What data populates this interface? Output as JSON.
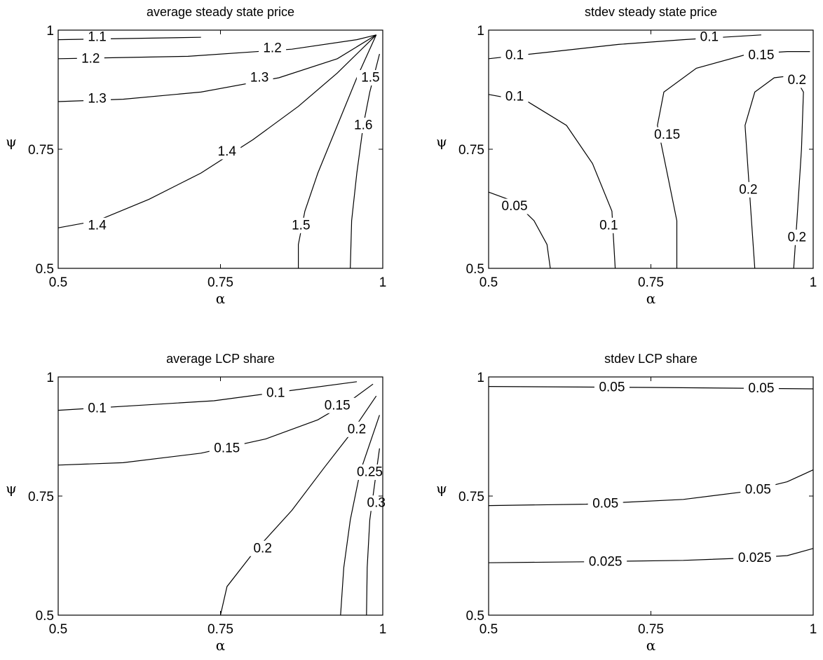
{
  "chart_data": [
    {
      "type": "contour",
      "title": "average steady state price",
      "xlabel": "α",
      "ylabel": "ψ",
      "xlim": [
        0.5,
        1
      ],
      "ylim": [
        0.5,
        1
      ],
      "xticks": [
        "0.5",
        "0.75",
        "1"
      ],
      "yticks": [
        "0.5",
        "0.75",
        "1"
      ],
      "contours": [
        {
          "level": "1.1",
          "points": [
            [
              0.5,
              0.98
            ],
            [
              0.72,
              0.985
            ]
          ],
          "label_at": [
            0.56,
            0.985
          ]
        },
        {
          "level": "1.2",
          "points": [
            [
              0.5,
              0.94
            ],
            [
              0.7,
              0.945
            ],
            [
              0.86,
              0.96
            ],
            [
              0.96,
              0.98
            ],
            [
              0.99,
              0.99
            ]
          ],
          "label_at": [
            0.55,
            0.94
          ]
        },
        {
          "level": "1.2",
          "points": [
            [
              0.5,
              0.94
            ],
            [
              0.99,
              0.99
            ]
          ],
          "label_at": [
            0.83,
            0.962
          ],
          "label_only": true
        },
        {
          "level": "1.3",
          "points": [
            [
              0.5,
              0.85
            ],
            [
              0.6,
              0.855
            ],
            [
              0.72,
              0.87
            ],
            [
              0.84,
              0.9
            ],
            [
              0.93,
              0.94
            ],
            [
              0.99,
              0.99
            ]
          ],
          "label_at": [
            0.56,
            0.856
          ]
        },
        {
          "level": "1.3",
          "points": [
            [
              0.5,
              0.85
            ],
            [
              0.99,
              0.99
            ]
          ],
          "label_at": [
            0.81,
            0.9
          ],
          "label_only": true
        },
        {
          "level": "1.4",
          "points": [
            [
              0.5,
              0.585
            ],
            [
              0.56,
              0.6
            ],
            [
              0.64,
              0.645
            ],
            [
              0.72,
              0.7
            ],
            [
              0.8,
              0.77
            ],
            [
              0.87,
              0.84
            ],
            [
              0.93,
              0.91
            ],
            [
              0.99,
              0.99
            ]
          ],
          "label_at": [
            0.76,
            0.745
          ]
        },
        {
          "level": "1.4",
          "points": [
            [
              0.5,
              0.585
            ],
            [
              0.99,
              0.99
            ]
          ],
          "label_at": [
            0.56,
            0.59
          ],
          "label_only": true
        },
        {
          "level": "1.5",
          "points": [
            [
              0.87,
              0.5
            ],
            [
              0.87,
              0.55
            ],
            [
              0.88,
              0.62
            ],
            [
              0.9,
              0.7
            ],
            [
              0.93,
              0.8
            ],
            [
              0.96,
              0.9
            ],
            [
              0.99,
              0.99
            ]
          ],
          "label_at": [
            0.874,
            0.59
          ]
        },
        {
          "level": "1.5",
          "points": [
            [
              0.87,
              0.5
            ],
            [
              0.99,
              0.99
            ]
          ],
          "label_at": [
            0.981,
            0.9
          ],
          "label_only": true
        },
        {
          "level": "1.6",
          "points": [
            [
              0.95,
              0.5
            ],
            [
              0.952,
              0.6
            ],
            [
              0.96,
              0.7
            ],
            [
              0.97,
              0.8
            ],
            [
              0.98,
              0.87
            ],
            [
              0.995,
              0.95
            ]
          ],
          "label_at": [
            0.97,
            0.8
          ]
        }
      ]
    },
    {
      "type": "contour",
      "title": "stdev steady state price",
      "xlabel": "α",
      "ylabel": "ψ",
      "xlim": [
        0.5,
        1
      ],
      "ylim": [
        0.5,
        1
      ],
      "xticks": [
        "0.5",
        "0.75",
        "1"
      ],
      "yticks": [
        "0.5",
        "0.75",
        "1"
      ],
      "contours": [
        {
          "level": "0.1",
          "points": [
            [
              0.5,
              0.94
            ],
            [
              0.6,
              0.955
            ],
            [
              0.7,
              0.97
            ],
            [
              0.8,
              0.98
            ],
            [
              0.92,
              0.99
            ]
          ],
          "label_at": [
            0.54,
            0.947
          ]
        },
        {
          "level": "0.1",
          "points": [
            [
              0.5,
              0.94
            ],
            [
              0.92,
              0.99
            ]
          ],
          "label_at": [
            0.84,
            0.985
          ],
          "label_only": true
        },
        {
          "level": "0.15",
          "points": [
            [
              0.79,
              0.5
            ],
            [
              0.79,
              0.6
            ],
            [
              0.775,
              0.7
            ],
            [
              0.76,
              0.8
            ],
            [
              0.77,
              0.87
            ],
            [
              0.82,
              0.92
            ],
            [
              0.9,
              0.95
            ],
            [
              0.96,
              0.955
            ],
            [
              0.995,
              0.955
            ]
          ],
          "label_at": [
            0.92,
            0.947
          ]
        },
        {
          "level": "0.15",
          "points": [
            [
              0.79,
              0.5
            ],
            [
              0.995,
              0.955
            ]
          ],
          "label_at": [
            0.775,
            0.78
          ],
          "label_only": true
        },
        {
          "level": "0.1",
          "points": [
            [
              0.5,
              0.865
            ],
            [
              0.56,
              0.85
            ],
            [
              0.62,
              0.8
            ],
            [
              0.66,
              0.72
            ],
            [
              0.69,
              0.62
            ],
            [
              0.695,
              0.5
            ]
          ],
          "label_at": [
            0.54,
            0.86
          ]
        },
        {
          "level": "0.1",
          "points": [
            [
              0.5,
              0.865
            ],
            [
              0.695,
              0.5
            ]
          ],
          "label_at": [
            0.685,
            0.59
          ],
          "label_only": true
        },
        {
          "level": "0.05",
          "points": [
            [
              0.5,
              0.66
            ],
            [
              0.54,
              0.64
            ],
            [
              0.57,
              0.6
            ],
            [
              0.59,
              0.55
            ],
            [
              0.595,
              0.5
            ]
          ],
          "label_at": [
            0.54,
            0.63
          ]
        },
        {
          "level": "0.2",
          "points": [
            [
              0.91,
              0.5
            ],
            [
              0.905,
              0.6
            ],
            [
              0.9,
              0.7
            ],
            [
              0.895,
              0.8
            ],
            [
              0.91,
              0.87
            ],
            [
              0.94,
              0.9
            ],
            [
              0.97,
              0.905
            ],
            [
              0.985,
              0.87
            ],
            [
              0.982,
              0.75
            ],
            [
              0.975,
              0.6
            ],
            [
              0.97,
              0.5
            ]
          ],
          "label_at": [
            0.9,
            0.665
          ]
        },
        {
          "level": "0.2",
          "points": [
            [
              0.91,
              0.5
            ],
            [
              0.97,
              0.5
            ]
          ],
          "label_at": [
            0.975,
            0.895
          ],
          "label_only": true
        },
        {
          "level": "0.2",
          "points": [
            [
              0.91,
              0.5
            ],
            [
              0.97,
              0.5
            ]
          ],
          "label_at": [
            0.975,
            0.565
          ],
          "label_only": true
        }
      ]
    },
    {
      "type": "contour",
      "title": "average LCP share",
      "xlabel": "α",
      "ylabel": "ψ",
      "xlim": [
        0.5,
        1
      ],
      "ylim": [
        0.5,
        1
      ],
      "xticks": [
        "0.5",
        "0.75",
        "1"
      ],
      "yticks": [
        "0.5",
        "0.75",
        "1"
      ],
      "contours": [
        {
          "level": "0.1",
          "points": [
            [
              0.5,
              0.93
            ],
            [
              0.62,
              0.94
            ],
            [
              0.74,
              0.95
            ],
            [
              0.85,
              0.97
            ],
            [
              0.96,
              0.99
            ]
          ],
          "label_at": [
            0.56,
            0.934
          ]
        },
        {
          "level": "0.1",
          "points": [
            [
              0.5,
              0.93
            ],
            [
              0.96,
              0.99
            ]
          ],
          "label_at": [
            0.835,
            0.966
          ],
          "label_only": true
        },
        {
          "level": "0.15",
          "points": [
            [
              0.5,
              0.815
            ],
            [
              0.6,
              0.82
            ],
            [
              0.72,
              0.84
            ],
            [
              0.82,
              0.87
            ],
            [
              0.9,
              0.91
            ],
            [
              0.95,
              0.95
            ],
            [
              0.985,
              0.985
            ]
          ],
          "label_at": [
            0.76,
            0.85
          ]
        },
        {
          "level": "0.15",
          "points": [
            [
              0.5,
              0.815
            ],
            [
              0.985,
              0.985
            ]
          ],
          "label_at": [
            0.93,
            0.94
          ],
          "label_only": true
        },
        {
          "level": "0.2",
          "points": [
            [
              0.75,
              0.5
            ],
            [
              0.76,
              0.56
            ],
            [
              0.8,
              0.63
            ],
            [
              0.86,
              0.72
            ],
            [
              0.91,
              0.81
            ],
            [
              0.95,
              0.88
            ],
            [
              0.99,
              0.96
            ]
          ],
          "label_at": [
            0.815,
            0.64
          ]
        },
        {
          "level": "0.2",
          "points": [
            [
              0.75,
              0.5
            ],
            [
              0.99,
              0.96
            ]
          ],
          "label_at": [
            0.96,
            0.89
          ],
          "label_only": true
        },
        {
          "level": "0.25",
          "points": [
            [
              0.935,
              0.5
            ],
            [
              0.94,
              0.6
            ],
            [
              0.95,
              0.7
            ],
            [
              0.965,
              0.8
            ],
            [
              0.98,
              0.86
            ],
            [
              0.995,
              0.92
            ]
          ],
          "label_at": [
            0.98,
            0.8
          ]
        },
        {
          "level": "0.3",
          "points": [
            [
              0.975,
              0.5
            ],
            [
              0.976,
              0.6
            ],
            [
              0.98,
              0.7
            ],
            [
              0.99,
              0.8
            ],
            [
              0.995,
              0.85
            ]
          ],
          "label_at": [
            0.99,
            0.735
          ]
        }
      ]
    },
    {
      "type": "contour",
      "title": "stdev LCP share",
      "xlabel": "α",
      "ylabel": "ψ",
      "xlim": [
        0.5,
        1
      ],
      "ylim": [
        0.5,
        1
      ],
      "xticks": [
        "0.5",
        "0.75",
        "1"
      ],
      "yticks": [
        "0.5",
        "0.75",
        "1"
      ],
      "contours": [
        {
          "level": "0.05",
          "points": [
            [
              0.5,
              0.98
            ],
            [
              0.75,
              0.978
            ],
            [
              1,
              0.975
            ]
          ],
          "label_at": [
            0.69,
            0.978
          ]
        },
        {
          "level": "0.05",
          "points": [
            [
              0.5,
              0.98
            ],
            [
              1,
              0.975
            ]
          ],
          "label_at": [
            0.92,
            0.976
          ],
          "label_only": true
        },
        {
          "level": "0.05",
          "points": [
            [
              0.5,
              0.73
            ],
            [
              0.65,
              0.733
            ],
            [
              0.8,
              0.743
            ],
            [
              0.9,
              0.76
            ],
            [
              0.96,
              0.78
            ],
            [
              1,
              0.805
            ]
          ],
          "label_at": [
            0.68,
            0.734
          ]
        },
        {
          "level": "0.05",
          "points": [
            [
              0.5,
              0.73
            ],
            [
              1,
              0.805
            ]
          ],
          "label_at": [
            0.915,
            0.763
          ],
          "label_only": true
        },
        {
          "level": "0.025",
          "points": [
            [
              0.5,
              0.61
            ],
            [
              0.65,
              0.612
            ],
            [
              0.8,
              0.615
            ],
            [
              0.9,
              0.62
            ],
            [
              0.96,
              0.625
            ],
            [
              1,
              0.64
            ]
          ],
          "label_at": [
            0.68,
            0.612
          ]
        },
        {
          "level": "0.025",
          "points": [
            [
              0.5,
              0.61
            ],
            [
              1,
              0.64
            ]
          ],
          "label_at": [
            0.91,
            0.62
          ],
          "label_only": true
        }
      ]
    }
  ]
}
